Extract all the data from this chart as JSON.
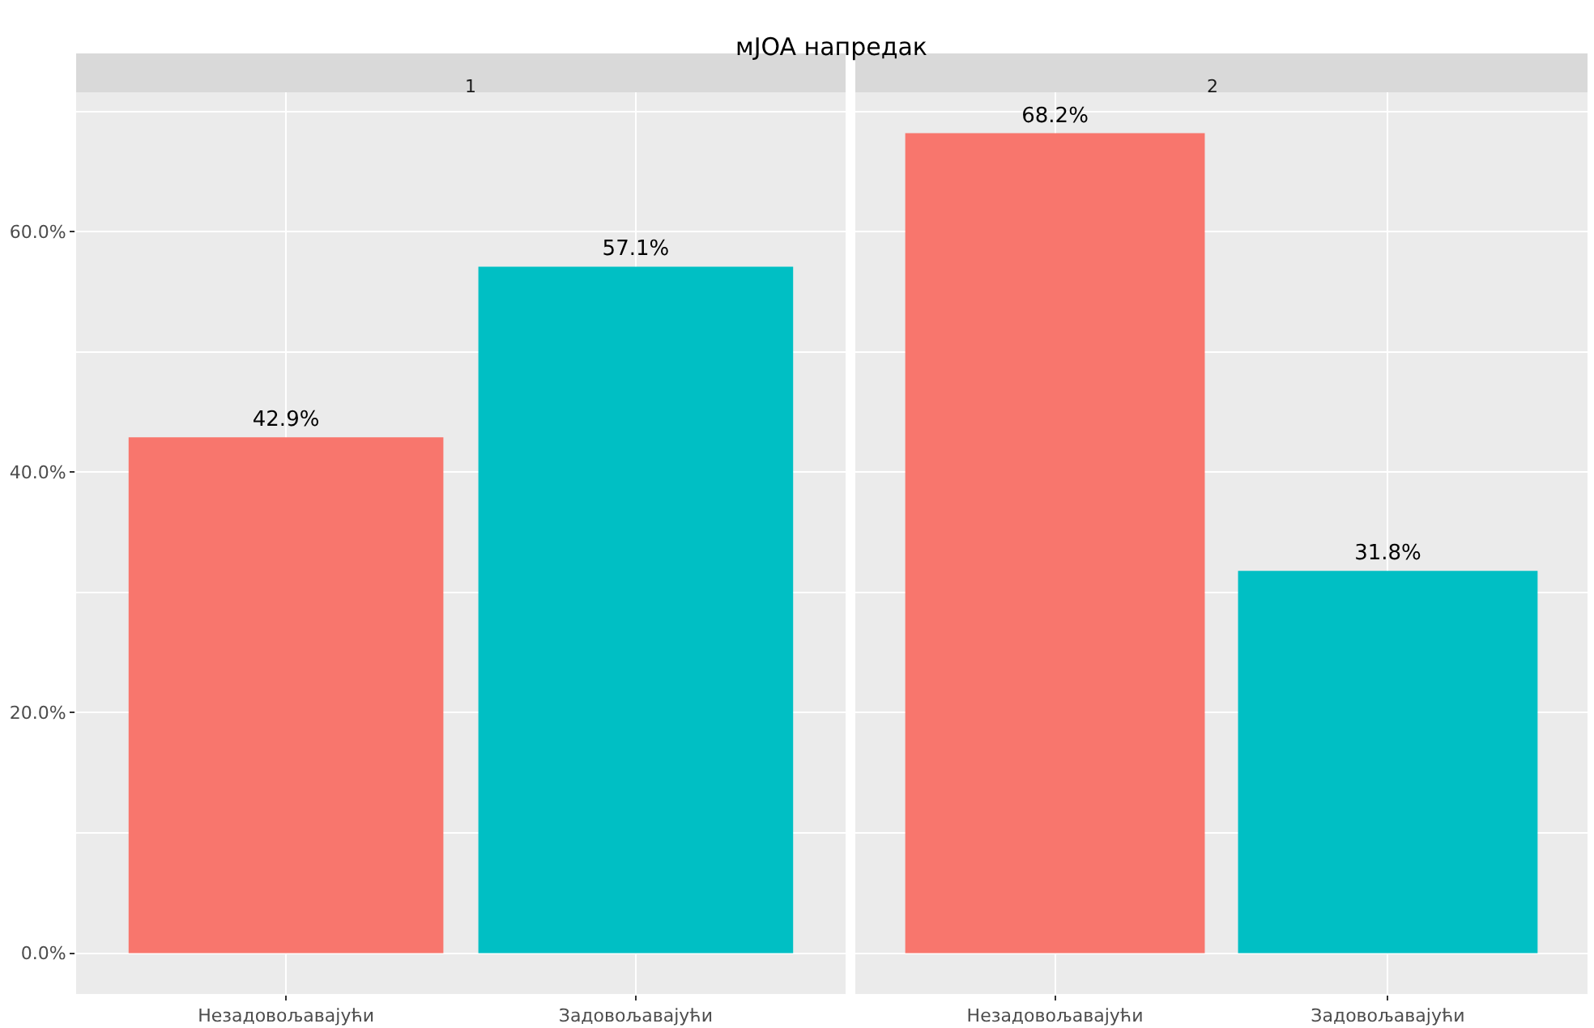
{
  "chart_data": [
    {
      "type": "bar",
      "title": "мJOA напредак",
      "subtitle": "1",
      "categories": [
        "Незадовољавајући",
        "Задовољавајући"
      ],
      "values": [
        42.9,
        57.1
      ],
      "colors": [
        "#f8766d",
        "#00bfc4"
      ],
      "value_labels": [
        "42.9%",
        "57.1%"
      ],
      "ylim": [
        -3.4,
        71.6
      ],
      "yticks": [
        {
          "value": 0,
          "label": "0.0%"
        },
        {
          "value": 20,
          "label": "20.0%"
        },
        {
          "value": 40,
          "label": "40.0%"
        },
        {
          "value": 60,
          "label": "60.0%"
        }
      ],
      "grid": true
    },
    {
      "type": "bar",
      "subtitle": "2",
      "categories": [
        "Незадовољавајући",
        "Задовољавајући"
      ],
      "values": [
        68.2,
        31.8
      ],
      "colors": [
        "#f8766d",
        "#00bfc4"
      ],
      "value_labels": [
        "68.2%",
        "31.8%"
      ],
      "ylim": [
        -3.4,
        71.6
      ],
      "yticks": [
        0,
        20,
        40,
        60
      ],
      "grid": true,
      "tick_labels": "x"
    }
  ]
}
